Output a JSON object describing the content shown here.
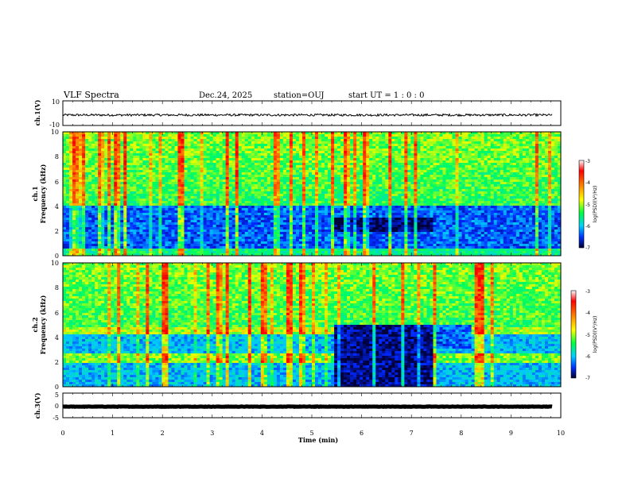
{
  "header": {
    "title": "VLF Spectra",
    "date": "Dec.24, 2025",
    "station": "station=OUJ",
    "start": "start  UT =  1 : 0  : 0"
  },
  "chart_data": [
    {
      "id": "ch1-waveform",
      "type": "line",
      "ylabel": "ch.1(V)",
      "ylim": [
        -10,
        10
      ],
      "yticks": [
        "10",
        "-10"
      ],
      "xlim": [
        0,
        10
      ],
      "trace": {
        "color": "#000000",
        "baseline": -1.5,
        "span_min": [
          0,
          9.83
        ]
      }
    },
    {
      "id": "ch1-spectrogram",
      "type": "heatmap",
      "ylabel_line1": "ch.1",
      "ylabel_line2": "Frequency  (kHz)",
      "ylim": [
        0,
        10
      ],
      "yticks": [
        "0",
        "2",
        "4",
        "6",
        "8",
        "10"
      ],
      "xlim": [
        0,
        10
      ],
      "colorbar": {
        "label": "log(PSD)(V²/Hz)",
        "range": [
          -7,
          -3
        ],
        "ticks": [
          "-3",
          "-4",
          "-5",
          "-6",
          "-7"
        ]
      }
    },
    {
      "id": "ch2-spectrogram",
      "type": "heatmap",
      "ylabel_line1": "ch.2",
      "ylabel_line2": "Frequency  (kHz)",
      "ylim": [
        0,
        10
      ],
      "yticks": [
        "0",
        "2",
        "4",
        "6",
        "8",
        "10"
      ],
      "xlim": [
        0,
        10
      ],
      "colorbar": {
        "label": "log(PSD)(V²/Hz)",
        "range": [
          -7,
          -3
        ],
        "ticks": [
          "-3",
          "-4",
          "-5",
          "-6",
          "-7"
        ]
      }
    },
    {
      "id": "ch3-waveform",
      "type": "line",
      "ylabel": "ch.3(V)",
      "ylim": [
        -5,
        5
      ],
      "yticks": [
        "5",
        "0",
        "-5"
      ],
      "xlim": [
        0,
        10
      ],
      "trace": {
        "color": "#000000",
        "baseline": -0.5,
        "span_min": [
          0,
          9.83
        ]
      }
    }
  ],
  "xaxis": {
    "label": "Time  (min)",
    "ticks": [
      "0",
      "1",
      "2",
      "3",
      "4",
      "5",
      "6",
      "7",
      "8",
      "9",
      "10"
    ]
  },
  "colors": {
    "frame": "#000000",
    "low": "#000080",
    "high": "#ff0000"
  }
}
